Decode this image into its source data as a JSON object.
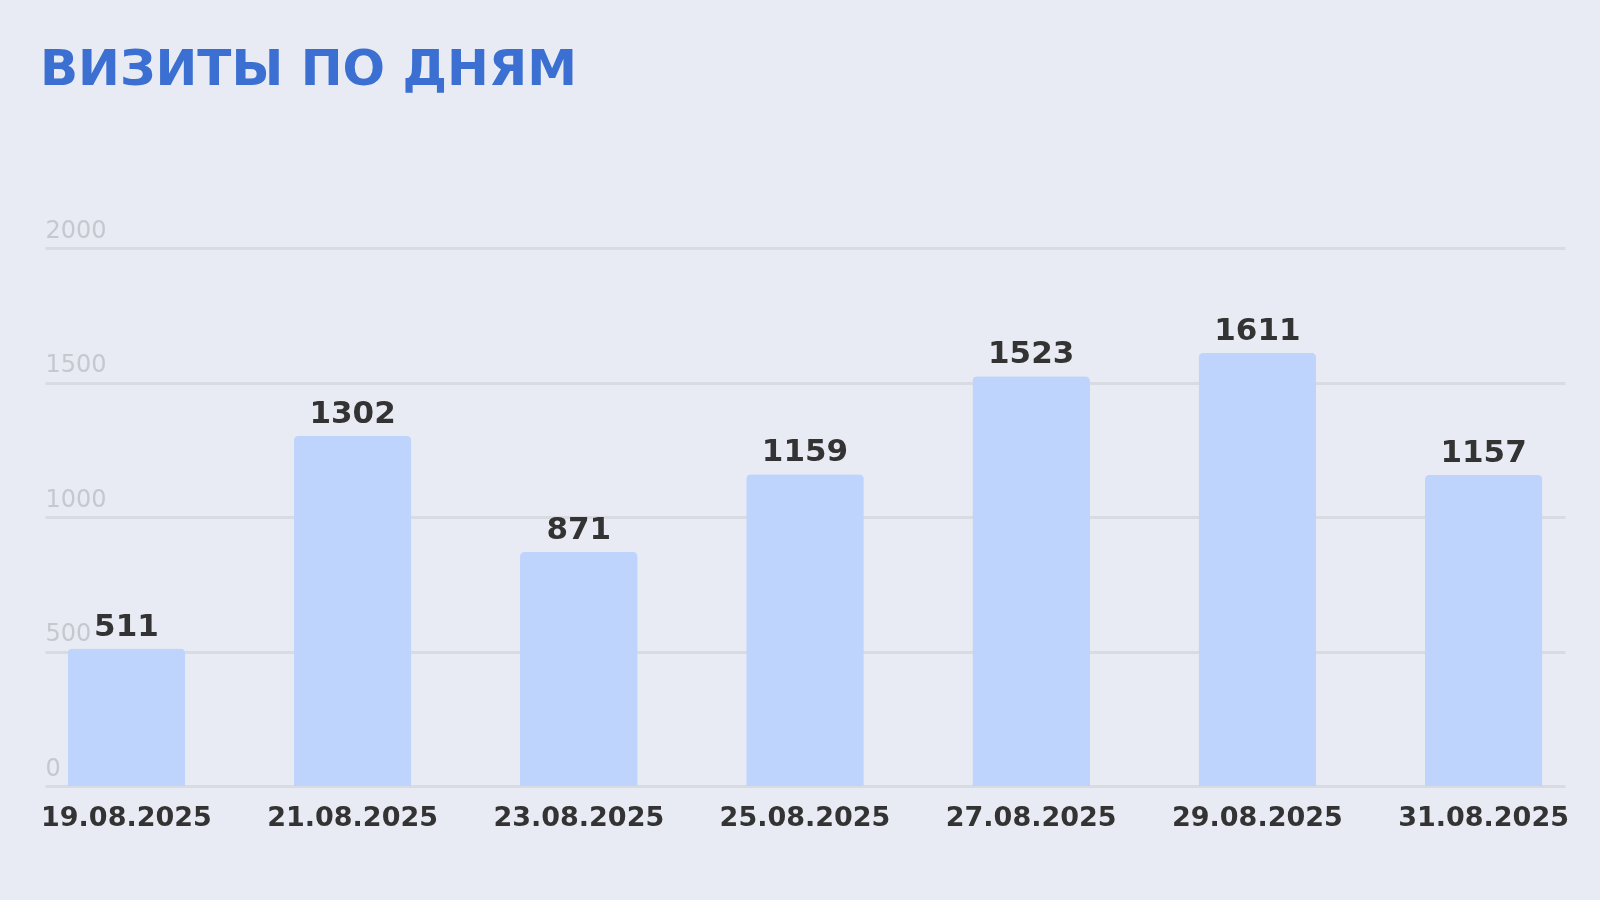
{
  "chart_data": {
    "type": "bar",
    "title": "ВИЗИТЫ ПО ДНЯМ",
    "categories": [
      "19.08.2025",
      "21.08.2025",
      "23.08.2025",
      "25.08.2025",
      "27.08.2025",
      "29.08.2025",
      "31.08.2025"
    ],
    "values": [
      511,
      1302,
      871,
      1159,
      1523,
      1611,
      1157
    ],
    "color": "#bfd4fd",
    "ylim": [
      0,
      2000
    ],
    "yticks": [
      0,
      500,
      1000,
      1500,
      2000
    ],
    "grid": true,
    "data_labels": true
  }
}
